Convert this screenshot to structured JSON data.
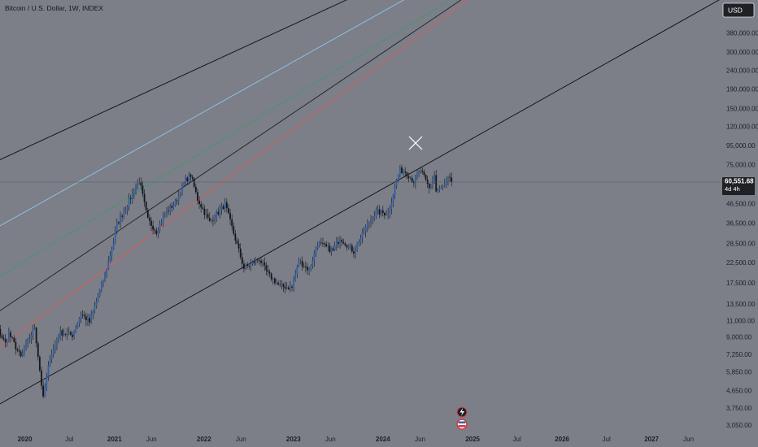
{
  "chart_data": {
    "type": "candlestick",
    "title": "Bitcoin / U.S. Dollar, 1W, INDEX",
    "currency_button": "USD",
    "y_scale": "log",
    "ylim": [
      2700,
      520000
    ],
    "y_ticks": [
      "380,000.00",
      "300,000.00",
      "240,000.00",
      "190,000.00",
      "150,000.00",
      "120,000.00",
      "95,000.00",
      "75,000.00",
      "46,500.00",
      "36,500.00",
      "28,500.00",
      "22,500.00",
      "17,500.00",
      "13,500.00",
      "11,000.00",
      "9,000.00",
      "7,250.00",
      "5,850.00",
      "4,650.00",
      "3,750.00",
      "3,050.00"
    ],
    "x_ticks": [
      "Jul",
      "2020",
      "Jul",
      "2021",
      "Jun",
      "2022",
      "Jun",
      "2023",
      "Jun",
      "2024",
      "Jun",
      "2025",
      "Jul",
      "2026",
      "Jul",
      "2027",
      "Jun"
    ],
    "x_tick_dates": [
      "2019-07-01",
      "2020-01-01",
      "2020-07-01",
      "2021-01-01",
      "2021-06-01",
      "2022-01-01",
      "2022-06-01",
      "2023-01-01",
      "2023-06-01",
      "2024-01-01",
      "2024-06-01",
      "2025-01-01",
      "2025-07-01",
      "2026-01-01",
      "2026-07-01",
      "2027-01-01",
      "2027-06-01"
    ],
    "last_price": {
      "label": "60,551.68",
      "countdown": "4d 4h",
      "value": 60551.68
    },
    "price_series": [
      [
        "2019-06-24",
        11500
      ],
      [
        "2019-07-29",
        10300
      ],
      [
        "2019-09-02",
        10500
      ],
      [
        "2019-10-14",
        8300
      ],
      [
        "2019-10-28",
        9400
      ],
      [
        "2019-12-16",
        7000
      ],
      [
        "2020-02-10",
        10200
      ],
      [
        "2020-03-16",
        4200
      ],
      [
        "2020-04-13",
        7000
      ],
      [
        "2020-05-25",
        9500
      ],
      [
        "2020-07-13",
        9200
      ],
      [
        "2020-08-17",
        12000
      ],
      [
        "2020-09-21",
        10800
      ],
      [
        "2020-11-16",
        18000
      ],
      [
        "2020-12-28",
        29000
      ],
      [
        "2021-01-11",
        36000
      ],
      [
        "2021-02-22",
        46000
      ],
      [
        "2021-04-12",
        62000
      ],
      [
        "2021-05-17",
        38000
      ],
      [
        "2021-06-21",
        33000
      ],
      [
        "2021-07-26",
        41000
      ],
      [
        "2021-09-06",
        47000
      ],
      [
        "2021-10-18",
        62000
      ],
      [
        "2021-11-08",
        66000
      ],
      [
        "2021-12-06",
        49000
      ],
      [
        "2022-01-24",
        37000
      ],
      [
        "2022-03-28",
        46000
      ],
      [
        "2022-05-09",
        30000
      ],
      [
        "2022-06-13",
        21000
      ],
      [
        "2022-08-15",
        23500
      ],
      [
        "2022-09-19",
        19500
      ],
      [
        "2022-11-07",
        16800
      ],
      [
        "2022-12-26",
        16500
      ],
      [
        "2023-01-23",
        23000
      ],
      [
        "2023-03-06",
        20500
      ],
      [
        "2023-04-10",
        28500
      ],
      [
        "2023-06-12",
        26000
      ],
      [
        "2023-07-10",
        30500
      ],
      [
        "2023-09-04",
        25800
      ],
      [
        "2023-10-23",
        34500
      ],
      [
        "2023-12-04",
        42000
      ],
      [
        "2024-01-22",
        41000
      ],
      [
        "2024-02-26",
        62000
      ],
      [
        "2024-03-11",
        70000
      ],
      [
        "2024-04-01",
        69000
      ],
      [
        "2024-05-06",
        61000
      ],
      [
        "2024-06-03",
        70000
      ],
      [
        "2024-07-08",
        56000
      ],
      [
        "2024-07-29",
        66000
      ],
      [
        "2024-08-05",
        54000
      ],
      [
        "2024-09-09",
        58000
      ],
      [
        "2024-09-23",
        63000
      ],
      [
        "2024-10-07",
        60551.68
      ]
    ],
    "channel_lines": [
      {
        "color": "#0c0c0e",
        "p1": [
          "2018-12-01",
          2400
        ],
        "p2": [
          "2024-08-01",
          80000
        ]
      },
      {
        "color": "#e05a5a",
        "p1": [
          "2019-01-01",
          4400
        ],
        "p2": [
          "2024-11-01",
          520000
        ]
      },
      {
        "color": "#1f2125",
        "p1": [
          "2019-03-01",
          8200
        ],
        "p2": [
          "2024-10-01",
          520000
        ]
      },
      {
        "color": "#3f9a6a",
        "p1": [
          "2019-03-01",
          13000
        ],
        "p2": [
          "2024-08-15",
          520000
        ]
      },
      {
        "color": "#8fc7ee",
        "p1": [
          "2019-03-01",
          25000
        ],
        "p2": [
          "2024-02-01",
          520000
        ]
      },
      {
        "color": "#0c0c0e",
        "p1": [
          "2019-03-01",
          60000
        ],
        "p2": [
          "2023-06-01",
          520000
        ]
      }
    ],
    "grid": false,
    "legend": "none"
  }
}
